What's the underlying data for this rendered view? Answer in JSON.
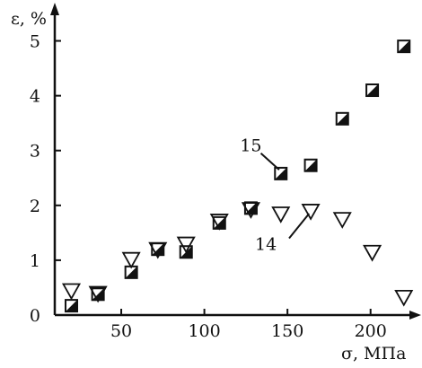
{
  "chart_data": {
    "type": "scatter",
    "xlabel": "σ, МПа",
    "ylabel": "ε, %",
    "xlim": [
      10,
      225
    ],
    "ylim": [
      0,
      5.5
    ],
    "x_ticks": [
      50,
      100,
      150,
      200
    ],
    "y_ticks": [
      0,
      1,
      2,
      3,
      4,
      5
    ],
    "grid": false,
    "legend": "none",
    "series": [
      {
        "name": "15",
        "marker": "half-filled-square",
        "color": "#111111",
        "points": [
          {
            "x": 20,
            "y": 0.17
          },
          {
            "x": 36,
            "y": 0.38
          },
          {
            "x": 56,
            "y": 0.78
          },
          {
            "x": 72,
            "y": 1.2
          },
          {
            "x": 89,
            "y": 1.15
          },
          {
            "x": 109,
            "y": 1.68
          },
          {
            "x": 128,
            "y": 1.95
          },
          {
            "x": 146,
            "y": 2.58
          },
          {
            "x": 164,
            "y": 2.73
          },
          {
            "x": 183,
            "y": 3.58
          },
          {
            "x": 201,
            "y": 4.1
          },
          {
            "x": 220,
            "y": 4.9
          }
        ]
      },
      {
        "name": "14",
        "marker": "open-triangle-down",
        "color": "#111111",
        "points": [
          {
            "x": 20,
            "y": 0.45
          },
          {
            "x": 36,
            "y": 0.4
          },
          {
            "x": 56,
            "y": 1.02
          },
          {
            "x": 72,
            "y": 1.2
          },
          {
            "x": 89,
            "y": 1.3
          },
          {
            "x": 109,
            "y": 1.72
          },
          {
            "x": 128,
            "y": 1.93
          },
          {
            "x": 146,
            "y": 1.85
          },
          {
            "x": 164,
            "y": 1.9
          },
          {
            "x": 183,
            "y": 1.75
          },
          {
            "x": 201,
            "y": 1.15
          },
          {
            "x": 220,
            "y": 0.33
          }
        ]
      }
    ],
    "annotations": [
      {
        "text": "15",
        "series": "15",
        "label_at": {
          "x": 128,
          "y": 3.1
        },
        "line_from": {
          "x": 134,
          "y": 2.95
        },
        "line_to": {
          "x": 145,
          "y": 2.65
        }
      },
      {
        "text": "14",
        "series": "14",
        "label_at": {
          "x": 137,
          "y": 1.3
        },
        "line_from": {
          "x": 151,
          "y": 1.4
        },
        "line_to": {
          "x": 163,
          "y": 1.85
        }
      }
    ]
  }
}
